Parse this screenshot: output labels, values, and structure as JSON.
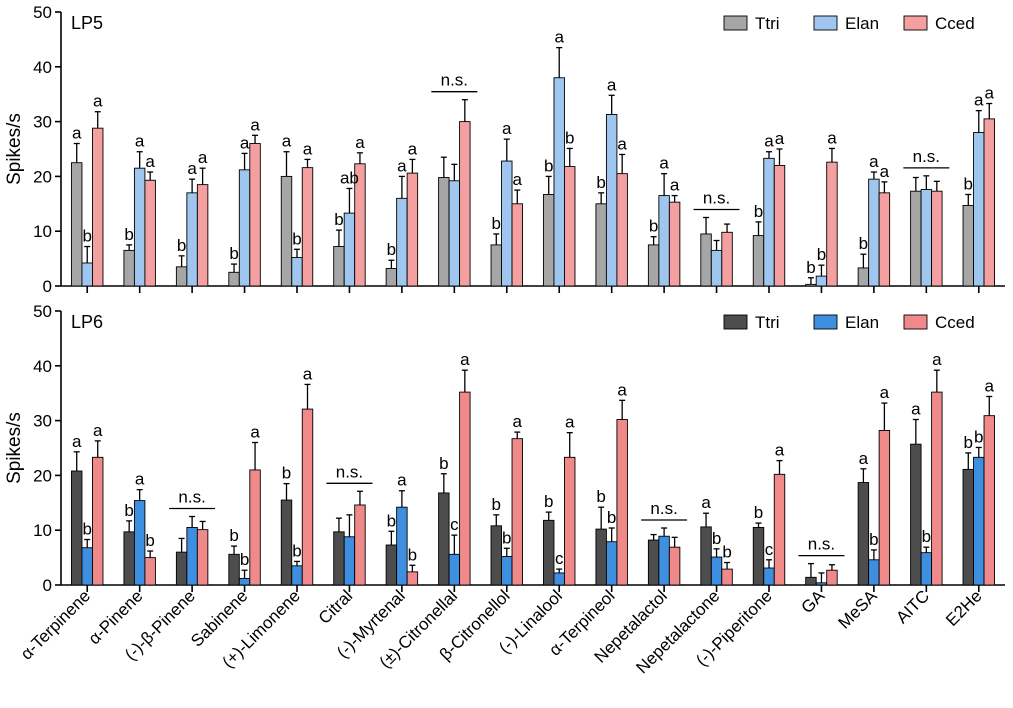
{
  "chart_data": [
    {
      "type": "bar",
      "panel_label": "LP5",
      "ylabel": "Spikes/s",
      "ylim": [
        0,
        50
      ],
      "yticks": [
        0,
        10,
        20,
        30,
        40,
        50
      ],
      "legend_position": "top-right",
      "categories": [
        "α-Terpinene",
        "α-Pinene",
        "(-)-β-Pinene",
        "Sabinene",
        "(+)-Limonene",
        "Citral",
        "(-)-Myrtenal",
        "(±)-Citronellal",
        "β-Citronellol",
        "(-)-Linalool",
        "α-Terpineol",
        "Nepetalactol",
        "Nepetalactone",
        "(-)-Piperitone",
        "GA",
        "MeSA",
        "AITC",
        "E2He"
      ],
      "series": [
        {
          "name": "Ttri",
          "color": "#a6a6a6",
          "values": [
            22.5,
            6.5,
            3.5,
            2.5,
            20.0,
            7.2,
            3.2,
            19.8,
            7.5,
            16.7,
            15.0,
            7.5,
            9.5,
            9.2,
            0.3,
            3.3,
            17.3,
            14.7
          ],
          "errors": [
            3.5,
            1.0,
            2.0,
            1.5,
            4.5,
            3.0,
            1.5,
            3.7,
            2.0,
            3.3,
            2.0,
            1.5,
            3.0,
            2.5,
            1.2,
            2.5,
            2.5,
            2.0
          ]
        },
        {
          "name": "Elan",
          "color": "#9fc6ef",
          "values": [
            4.2,
            21.5,
            17.0,
            21.2,
            5.2,
            13.3,
            16.0,
            19.2,
            22.8,
            38.0,
            31.3,
            16.5,
            6.5,
            23.3,
            1.8,
            19.5,
            17.6,
            28.0
          ],
          "errors": [
            3.0,
            3.0,
            2.5,
            3.0,
            1.5,
            4.5,
            4.0,
            3.0,
            4.0,
            5.5,
            3.5,
            4.0,
            1.8,
            1.2,
            2.0,
            1.3,
            2.5,
            4.0
          ]
        },
        {
          "name": "Cced",
          "color": "#f4a0a0",
          "values": [
            28.8,
            19.3,
            18.5,
            26.0,
            21.6,
            22.3,
            20.6,
            30.0,
            15.0,
            21.8,
            20.5,
            15.3,
            9.8,
            22.0,
            22.6,
            17.0,
            17.3,
            30.5
          ],
          "errors": [
            3.0,
            1.5,
            3.0,
            1.5,
            1.5,
            2.0,
            2.5,
            4.0,
            2.5,
            3.3,
            3.5,
            1.2,
            1.5,
            3.0,
            2.5,
            2.0,
            1.8,
            2.8
          ]
        }
      ],
      "significance": [
        [
          "a",
          "b",
          "a"
        ],
        [
          "b",
          "a",
          "a"
        ],
        [
          "b",
          "a",
          "a"
        ],
        [
          "b",
          "a",
          "a"
        ],
        [
          "a",
          "b",
          "a"
        ],
        [
          "b",
          "ab",
          "a"
        ],
        [
          "b",
          "a",
          "a"
        ],
        [
          "n.s."
        ],
        [
          "b",
          "a",
          "a"
        ],
        [
          "b",
          "a",
          "b"
        ],
        [
          "b",
          "a",
          "a"
        ],
        [
          "b",
          "a",
          "a"
        ],
        [
          "n.s."
        ],
        [
          "b",
          "a",
          "a"
        ],
        [
          "b",
          "b",
          "a"
        ],
        [
          "b",
          "a",
          "a"
        ],
        [
          "n.s."
        ],
        [
          "b",
          "a",
          "a"
        ]
      ]
    },
    {
      "type": "bar",
      "panel_label": "LP6",
      "ylabel": "Spikes/s",
      "ylim": [
        0,
        50
      ],
      "yticks": [
        0,
        10,
        20,
        30,
        40,
        50
      ],
      "legend_position": "top-right",
      "categories": [
        "α-Terpinene",
        "α-Pinene",
        "(-)-β-Pinene",
        "Sabinene",
        "(+)-Limonene",
        "Citral",
        "(-)-Myrtenal",
        "(±)-Citronellal",
        "β-Citronellol",
        "(-)-Linalool",
        "α-Terpineol",
        "Nepetalactol",
        "Nepetalactone",
        "(-)-Piperitone",
        "GA",
        "MeSA",
        "AITC",
        "E2He"
      ],
      "series": [
        {
          "name": "Ttri",
          "color": "#4d4d4d",
          "values": [
            20.8,
            9.7,
            6.0,
            5.6,
            15.5,
            9.7,
            7.3,
            16.8,
            10.8,
            11.8,
            10.2,
            8.2,
            10.6,
            10.5,
            1.4,
            18.7,
            25.7,
            21.1
          ],
          "errors": [
            3.5,
            2.0,
            2.5,
            1.5,
            3.0,
            2.5,
            2.5,
            3.5,
            2.0,
            1.5,
            4.0,
            1.0,
            2.5,
            0.8,
            2.5,
            2.5,
            4.5,
            3.0
          ]
        },
        {
          "name": "Elan",
          "color": "#3f8fe0",
          "values": [
            6.8,
            15.4,
            10.5,
            1.2,
            3.5,
            8.8,
            14.2,
            5.6,
            5.2,
            2.2,
            7.9,
            8.9,
            5.1,
            3.1,
            0.4,
            4.6,
            5.9,
            23.3
          ],
          "errors": [
            1.5,
            2.0,
            2.0,
            1.5,
            0.8,
            4.0,
            3.0,
            3.5,
            1.5,
            0.7,
            2.5,
            1.5,
            1.5,
            1.5,
            1.8,
            1.8,
            1.0,
            1.8
          ]
        },
        {
          "name": "Cced",
          "color": "#f08a8a",
          "values": [
            23.3,
            5.0,
            10.1,
            21.0,
            32.1,
            14.6,
            2.4,
            35.2,
            26.7,
            23.3,
            30.2,
            6.9,
            2.9,
            20.2,
            2.7,
            28.2,
            35.2,
            30.9
          ],
          "errors": [
            3.0,
            1.2,
            1.5,
            5.0,
            4.5,
            2.5,
            1.2,
            4.0,
            1.2,
            4.5,
            3.5,
            1.8,
            1.2,
            2.5,
            1.0,
            5.0,
            4.0,
            3.5
          ]
        }
      ],
      "significance": [
        [
          "a",
          "b",
          "a"
        ],
        [
          "b",
          "a",
          "b"
        ],
        [
          "n.s."
        ],
        [
          "b",
          "b",
          "a"
        ],
        [
          "b",
          "b",
          "a"
        ],
        [
          "n.s."
        ],
        [
          "b",
          "a",
          "b"
        ],
        [
          "b",
          "c",
          "a"
        ],
        [
          "b",
          "b",
          "a"
        ],
        [
          "b",
          "c",
          "a"
        ],
        [
          "b",
          "b",
          "a"
        ],
        [
          "n.s."
        ],
        [
          "a",
          "b",
          "b"
        ],
        [
          "b",
          "c",
          "a"
        ],
        [
          "n.s."
        ],
        [
          "a",
          "b",
          "a"
        ],
        [
          "a",
          "b",
          "a"
        ],
        [
          "b",
          "b",
          "a"
        ]
      ]
    }
  ]
}
